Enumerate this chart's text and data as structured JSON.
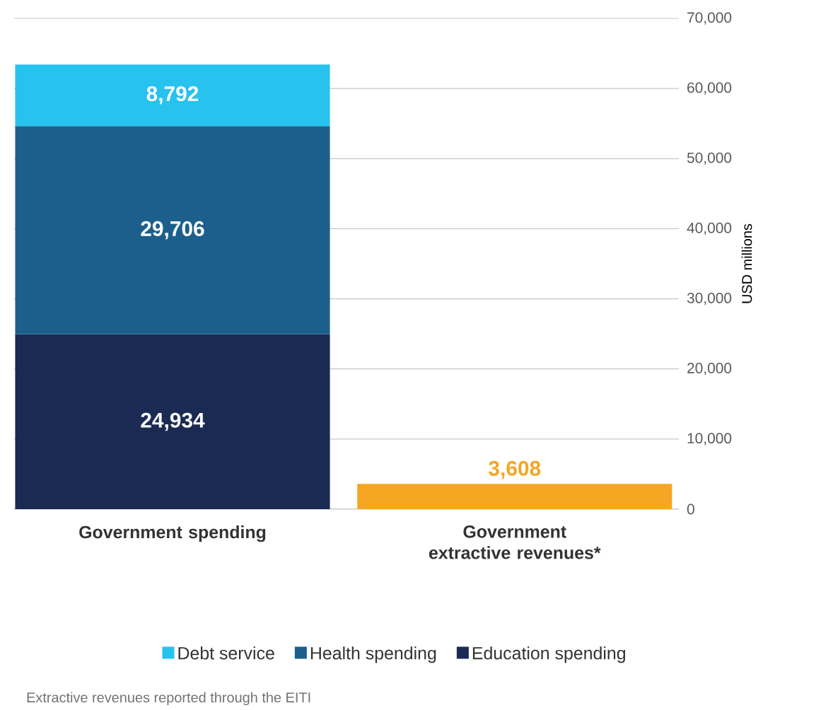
{
  "chart_data": {
    "type": "bar",
    "stacked": true,
    "categories": [
      "Government spending",
      "Government extractive revenues*"
    ],
    "series": [
      {
        "name": "Education spending",
        "color": "#1b2a52",
        "values": [
          24934,
          null
        ],
        "value_labels": [
          "24,934",
          null
        ]
      },
      {
        "name": "Health spending",
        "color": "#1c5f8c",
        "values": [
          29706,
          null
        ],
        "value_labels": [
          "29,706",
          null
        ]
      },
      {
        "name": "Debt service",
        "color": "#27c2ee",
        "values": [
          8792,
          null
        ],
        "value_labels": [
          "8,792",
          null
        ]
      },
      {
        "color": "#f5a623",
        "values": [
          null,
          3608
        ],
        "value_labels": [
          null,
          "3,608"
        ]
      }
    ],
    "ylabel": "USD millions",
    "ylim": [
      0,
      70000
    ],
    "yticks": [
      0,
      {
        "value": 10000,
        "label": "10,000"
      },
      {
        "value": 20000,
        "label": "20,000"
      },
      {
        "value": 30000,
        "label": "30,000"
      },
      {
        "value": 40000,
        "label": "40,000"
      },
      {
        "value": 50000,
        "label": "50,000"
      },
      {
        "value": 60000,
        "label": "60,000"
      },
      {
        "value": 70000,
        "label": "70,000"
      }
    ],
    "grid": "y",
    "legend": "bottom",
    "annotations": [
      "Extractive revenues reported through the EITI"
    ]
  }
}
